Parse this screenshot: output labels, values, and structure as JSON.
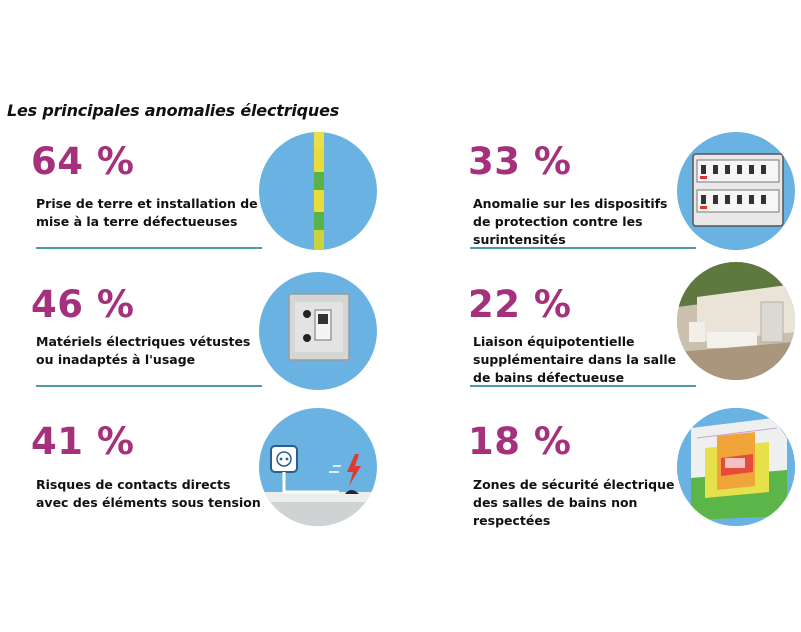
{
  "title": "Les principales anomalies électriques",
  "items": [
    {
      "percent": "64 %",
      "lines": [
        "Prise de terre et installation de",
        "mise à la terre défectueuses"
      ],
      "icon": "earth-wire-icon"
    },
    {
      "percent": "33 %",
      "lines": [
        "Anomalie sur les dispositifs",
        "de protection contre les",
        "surintensités"
      ],
      "icon": "breaker-panel-icon"
    },
    {
      "percent": "46 %",
      "lines": [
        "Matériels électriques vétustes",
        "ou inadaptés à l'usage"
      ],
      "icon": "old-switch-outlet-icon"
    },
    {
      "percent": "22 %",
      "lines": [
        "Liaison équipotentielle",
        "supplémentaire dans la salle",
        "de bains défectueuse"
      ],
      "icon": "bathroom-icon"
    },
    {
      "percent": "41 %",
      "lines": [
        "Risques de contacts directs",
        "avec des éléments sous tension"
      ],
      "icon": "live-contact-icon"
    },
    {
      "percent": "18 %",
      "lines": [
        "Zones de sécurité électrique",
        "des salles de bains non",
        "respectées"
      ],
      "icon": "bathroom-zones-icon"
    }
  ],
  "colors": {
    "percent": "#a5317c",
    "circle": "#6ab2e2",
    "rule": "#4f9aa6",
    "text": "#111111"
  }
}
